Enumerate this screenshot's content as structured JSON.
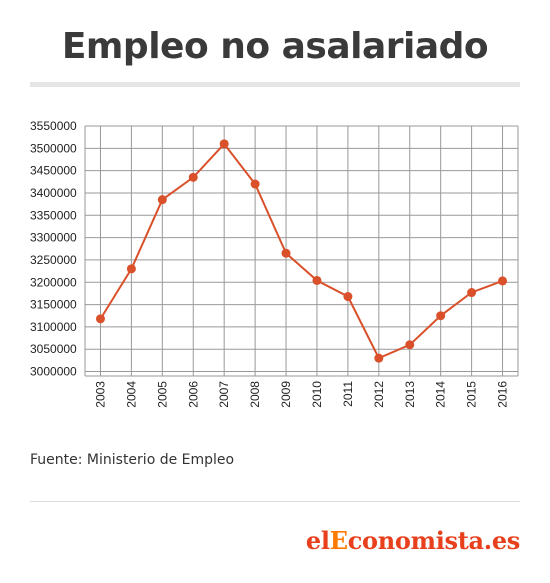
{
  "header": {
    "title": "Empleo no asalariado"
  },
  "footer": {
    "source": "Fuente: Ministerio de Empleo",
    "logo_text": "elEconomista.es"
  },
  "colors": {
    "line": "#d9502a",
    "grid": "#999999",
    "title": "#3a3a3a",
    "logo_orange": "#e8401c"
  },
  "chart_data": {
    "type": "line",
    "title": "Empleo no asalariado",
    "x": [
      "2003",
      "2004",
      "2005",
      "2006",
      "2007",
      "2008",
      "2009",
      "2010",
      "2011",
      "2012",
      "2013",
      "2014",
      "2015",
      "2016"
    ],
    "series": [
      {
        "values": [
          3118000,
          3230000,
          3385000,
          3435000,
          3510000,
          3420000,
          3265000,
          3204000,
          3168000,
          3030000,
          3060000,
          3125000,
          3177000,
          3203000
        ]
      }
    ],
    "yticks": [
      "3000000",
      "3050000",
      "3100000",
      "3150000",
      "3200000",
      "3250000",
      "3300000",
      "3350000",
      "3400000",
      "3450000",
      "3500000",
      "3550000"
    ],
    "ylim": [
      2990000,
      3550000
    ],
    "grid": true,
    "legend": "none"
  }
}
